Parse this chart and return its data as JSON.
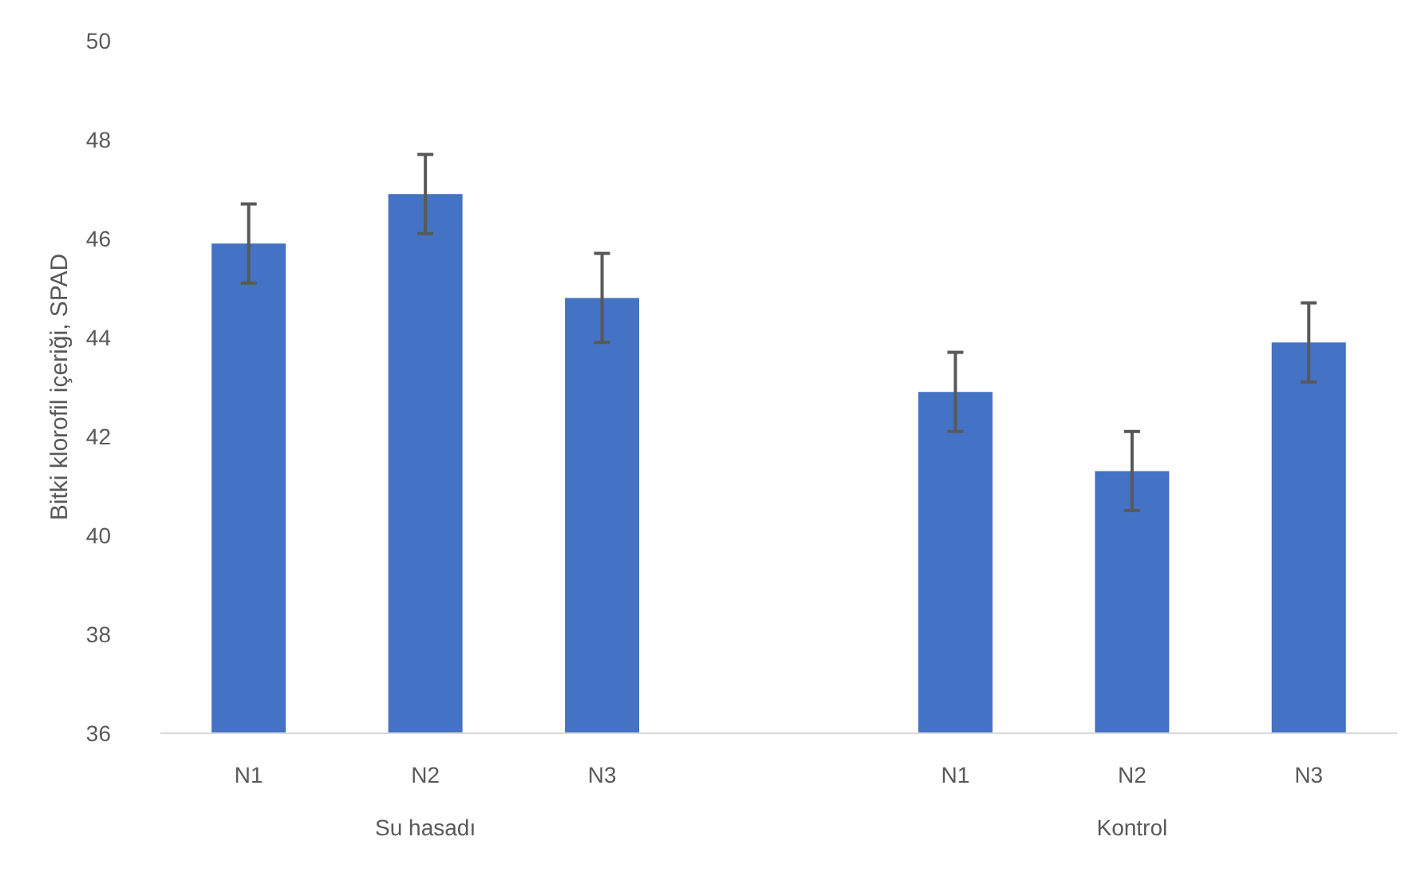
{
  "chart_data": {
    "type": "bar",
    "ylabel": "Bitki klorofil içeriği, SPAD",
    "categories": [
      "N1",
      "N2",
      "N3",
      "N1",
      "N2",
      "N3"
    ],
    "values": [
      45.9,
      46.9,
      44.8,
      42.9,
      41.3,
      43.9
    ],
    "errors": [
      0.8,
      0.8,
      0.9,
      0.8,
      0.8,
      0.8
    ],
    "color": "#4472c4",
    "ylim": [
      36,
      50
    ],
    "yticks": [
      36,
      38,
      40,
      42,
      44,
      46,
      48,
      50
    ],
    "grid": false,
    "annotations": [
      "Su hasadı",
      "Kontrol"
    ]
  }
}
